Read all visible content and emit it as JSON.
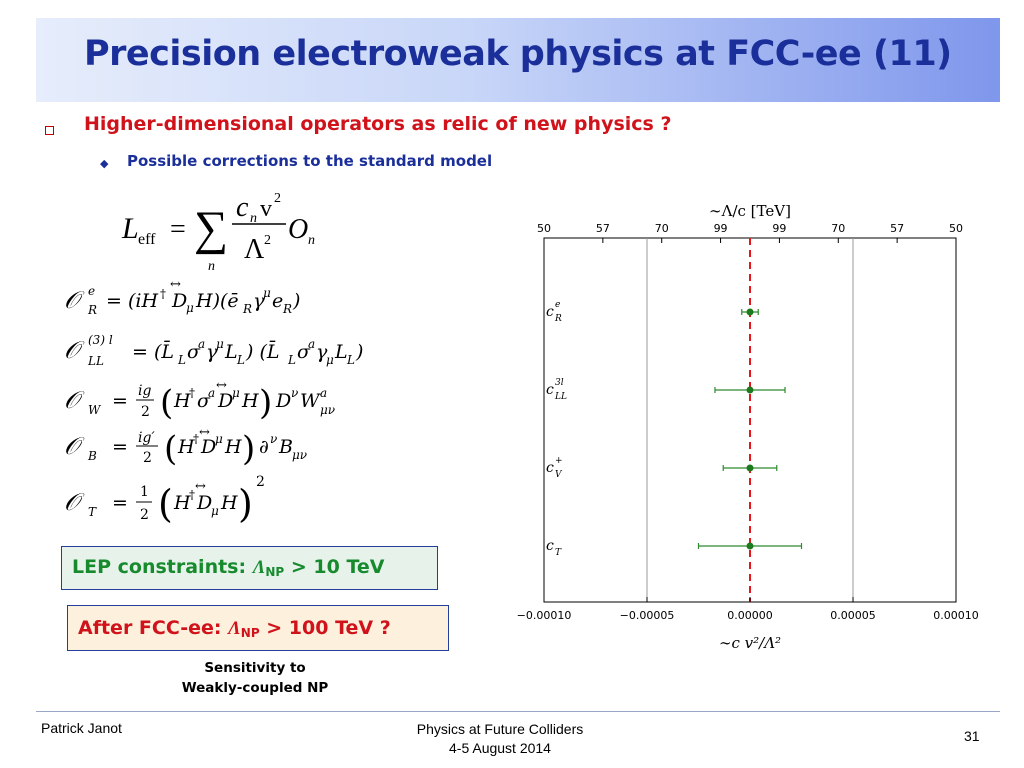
{
  "slide": {
    "title": "Precision electroweak physics at FCC-ee (11)",
    "bullet1": "Higher-dimensional operators as relic of new physics ?",
    "bullet2": "Possible corrections to the standard model"
  },
  "formula": {
    "lhs": "L",
    "lhs_sub": "eff",
    "equals": "=",
    "sum": "∑",
    "sum_index": "n",
    "coef": "c",
    "coef_sub": "n",
    "vev": "v",
    "vev_exp": "2",
    "scale": "Λ",
    "scale_exp": "2",
    "op": "O",
    "op_sub": "n"
  },
  "operators": [
    {
      "lhs": "𝒪",
      "sub": "R",
      "sup": "e",
      "rhs": "= (iH† D̅μ H)(ē_R γ^μ e_R)"
    },
    {
      "lhs": "𝒪",
      "sub": "LL",
      "sup": "(3) l",
      "rhs": "= (L̄_L σ^a γ^μ L_L) (L̄_L σ^a γ_μ L_L)"
    },
    {
      "lhs": "𝒪",
      "sub": "W",
      "sup": "",
      "rhs": "= ig/2 (H† σ^a D̅^μ H) D^ν W^a_μν"
    },
    {
      "lhs": "𝒪",
      "sub": "B",
      "sup": "",
      "rhs": "= ig′/2 (H† D̅^μ H) ∂^ν B_μν"
    },
    {
      "lhs": "𝒪",
      "sub": "T",
      "sup": "",
      "rhs": "= 1/2 (H† D̅_μ H)²"
    }
  ],
  "lep_box": {
    "prefix": "LEP constraints: ",
    "symbol": "Λ",
    "symbol_sub": "NP",
    "suffix": " > 10 TeV",
    "bg_color": "#e7f3ea",
    "text_color": "#178a2e"
  },
  "fcc_box": {
    "prefix": "After FCC-ee: ",
    "symbol": "Λ",
    "symbol_sub": "NP",
    "suffix": " > 100 TeV ?",
    "bg_color": "#fdf0dc",
    "text_color": "#d0121b"
  },
  "sensitivity": {
    "line1": "Sensitivity to",
    "line2": "Weakly-coupled NP"
  },
  "chart_data": {
    "type": "scatter",
    "top_axis_label": "∼Λ/c [TeV]",
    "top_ticks": [
      "50",
      "57",
      "70",
      "99",
      "99",
      "70",
      "57",
      "50"
    ],
    "bottom_ticks": [
      "−0.00010",
      "−0.00005",
      "0.00000",
      "0.00005",
      "0.00010"
    ],
    "xlabel": "∼c v²/Λ²",
    "xlim": [
      -0.0001,
      0.0001
    ],
    "reference_line_x": 0,
    "vertical_grid_x": [
      -5e-05,
      5e-05
    ],
    "series": [
      {
        "categories": [
          "c_R^e",
          "c_LL^3l",
          "c_V^+",
          "c_T"
        ],
        "labels": [
          {
            "base": "c",
            "sub": "R",
            "sup": "e"
          },
          {
            "base": "c",
            "sub": "LL",
            "sup": "3l"
          },
          {
            "base": "c",
            "sub": "V",
            "sup": "+"
          },
          {
            "base": "c",
            "sub": "T",
            "sup": ""
          }
        ],
        "values": [
          0.0,
          0.0,
          0.0,
          0.0
        ],
        "errors": [
          4e-06,
          1.7e-05,
          1.3e-05,
          2.5e-05
        ]
      }
    ],
    "marker_color": "#1e7a1e",
    "errorbar_color": "#2e8b2e",
    "reference_line_color": "#e8151b"
  },
  "footer": {
    "author": "Patrick Janot",
    "conference": "Physics at Future Colliders",
    "date": "4-5 August 2014",
    "page": "31"
  }
}
